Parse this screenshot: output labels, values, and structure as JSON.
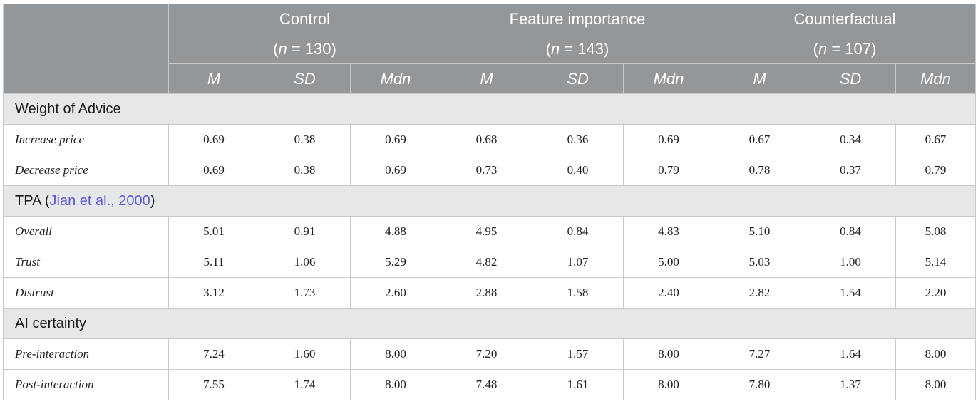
{
  "header": {
    "groups": [
      {
        "name": "Control",
        "n_prefix": "(",
        "n_var": "n",
        "n_suffix": " = 130)"
      },
      {
        "name": "Feature importance",
        "n_prefix": "(",
        "n_var": "n",
        "n_suffix": " = 143)"
      },
      {
        "name": "Counterfactual",
        "n_prefix": "(",
        "n_var": "n",
        "n_suffix": " = 107)"
      }
    ],
    "stats": [
      "M",
      "SD",
      "Mdn"
    ]
  },
  "sections": [
    {
      "title": "Weight of Advice",
      "rows": [
        {
          "label": "Increase price",
          "values": [
            "0.69",
            "0.38",
            "0.69",
            "0.68",
            "0.36",
            "0.69",
            "0.67",
            "0.34",
            "0.67"
          ]
        },
        {
          "label": "Decrease price",
          "values": [
            "0.69",
            "0.38",
            "0.69",
            "0.73",
            "0.40",
            "0.79",
            "0.78",
            "0.37",
            "0.79"
          ]
        }
      ]
    },
    {
      "title": "TPA",
      "title_open": " (",
      "citation": "Jian et al., 2000",
      "title_close": ")",
      "rows": [
        {
          "label": "Overall",
          "values": [
            "5.01",
            "0.91",
            "4.88",
            "4.95",
            "0.84",
            "4.83",
            "5.10",
            "0.84",
            "5.08"
          ]
        },
        {
          "label": "Trust",
          "values": [
            "5.11",
            "1.06",
            "5.29",
            "4.82",
            "1.07",
            "5.00",
            "5.03",
            "1.00",
            "5.14"
          ]
        },
        {
          "label": "Distrust",
          "values": [
            "3.12",
            "1.73",
            "2.60",
            "2.88",
            "1.58",
            "2.40",
            "2.82",
            "1.54",
            "2.20"
          ]
        }
      ]
    },
    {
      "title": "AI certainty",
      "rows": [
        {
          "label": "Pre-interaction",
          "values": [
            "7.24",
            "1.60",
            "8.00",
            "7.20",
            "1.57",
            "8.00",
            "7.27",
            "1.64",
            "8.00"
          ]
        },
        {
          "label": "Post-interaction",
          "values": [
            "7.55",
            "1.74",
            "8.00",
            "7.48",
            "1.61",
            "8.00",
            "7.80",
            "1.37",
            "8.00"
          ]
        }
      ]
    }
  ],
  "colors": {
    "header_bg": "#949799",
    "section_bg": "#e6e7e8",
    "link": "#5b5bd6",
    "border": "#c9c9c9"
  }
}
